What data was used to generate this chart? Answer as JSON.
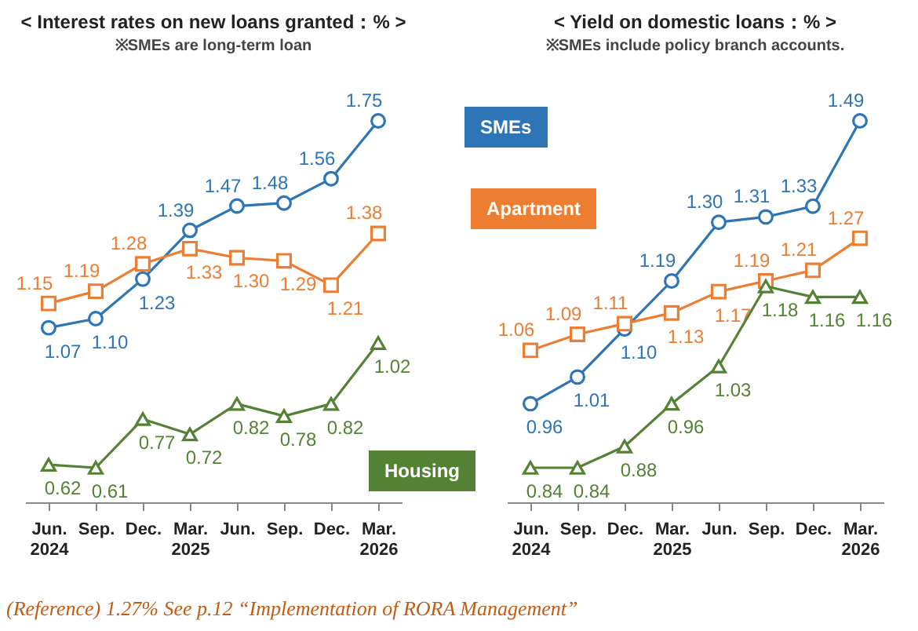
{
  "chart_data": [
    {
      "type": "line",
      "title": "< Interest rates on new loans granted：% >",
      "subtitle": "※SMEs are long-term loan",
      "categories": [
        "Jun. 2024",
        "Sep.",
        "Dec.",
        "Mar. 2025",
        "Jun.",
        "Sep.",
        "Dec.",
        "Mar. 2026"
      ],
      "series": [
        {
          "name": "SMEs",
          "color": "#2e75b6",
          "marker": "circle",
          "values": [
            1.07,
            1.1,
            1.23,
            1.39,
            1.47,
            1.48,
            1.56,
            1.75
          ],
          "value_labels": [
            "1.07",
            "1.10",
            "1.23",
            "1.39",
            "1.47",
            "1.48",
            "1.56",
            "1.75"
          ]
        },
        {
          "name": "Apartment",
          "color": "#ed7d31",
          "marker": "square",
          "values": [
            1.15,
            1.19,
            1.28,
            1.33,
            1.3,
            1.29,
            1.21,
            1.38
          ],
          "value_labels": [
            "1.15",
            "1.19",
            "1.28",
            "1.33",
            "1.30",
            "1.29",
            "1.21",
            "1.38"
          ]
        },
        {
          "name": "Housing",
          "color": "#548235",
          "marker": "triangle",
          "values": [
            0.62,
            0.61,
            0.77,
            0.72,
            0.82,
            0.78,
            0.82,
            1.02
          ],
          "value_labels": [
            "0.62",
            "0.61",
            "0.77",
            "0.72",
            "0.82",
            "0.78",
            "0.82",
            "1.02"
          ]
        }
      ],
      "legend": "right",
      "grid": false,
      "annotations": [
        "(Reference) 1.27% See p.12 “Implementation of RORA Management”"
      ]
    },
    {
      "type": "line",
      "title": "< Yield on domestic loans：% >",
      "subtitle": "※SMEs include policy branch accounts.",
      "categories": [
        "Jun. 2024",
        "Sep.",
        "Dec.",
        "Mar. 2025",
        "Jun.",
        "Sep.",
        "Dec.",
        "Mar. 2026"
      ],
      "series": [
        {
          "color": "#2e75b6",
          "marker": "circle",
          "values": [
            0.96,
            1.01,
            1.1,
            1.19,
            1.3,
            1.31,
            1.33,
            1.49
          ],
          "value_labels": [
            "0.96",
            "1.01",
            "1.10",
            "1.19",
            "1.30",
            "1.31",
            "1.33",
            "1.49"
          ]
        },
        {
          "color": "#ed7d31",
          "marker": "square",
          "values": [
            1.06,
            1.09,
            1.11,
            1.13,
            1.17,
            1.19,
            1.21,
            1.27
          ],
          "value_labels": [
            "1.06",
            "1.09",
            "1.11",
            "1.13",
            "1.17",
            "1.19",
            "1.21",
            "1.27"
          ]
        },
        {
          "color": "#548235",
          "marker": "triangle",
          "values": [
            0.84,
            0.84,
            0.88,
            0.96,
            1.03,
            1.18,
            1.16,
            1.16
          ],
          "value_labels": [
            "0.84",
            "0.84",
            "0.88",
            "0.96",
            "1.03",
            "1.18",
            "1.16",
            "1.16"
          ]
        }
      ],
      "grid": false
    }
  ]
}
